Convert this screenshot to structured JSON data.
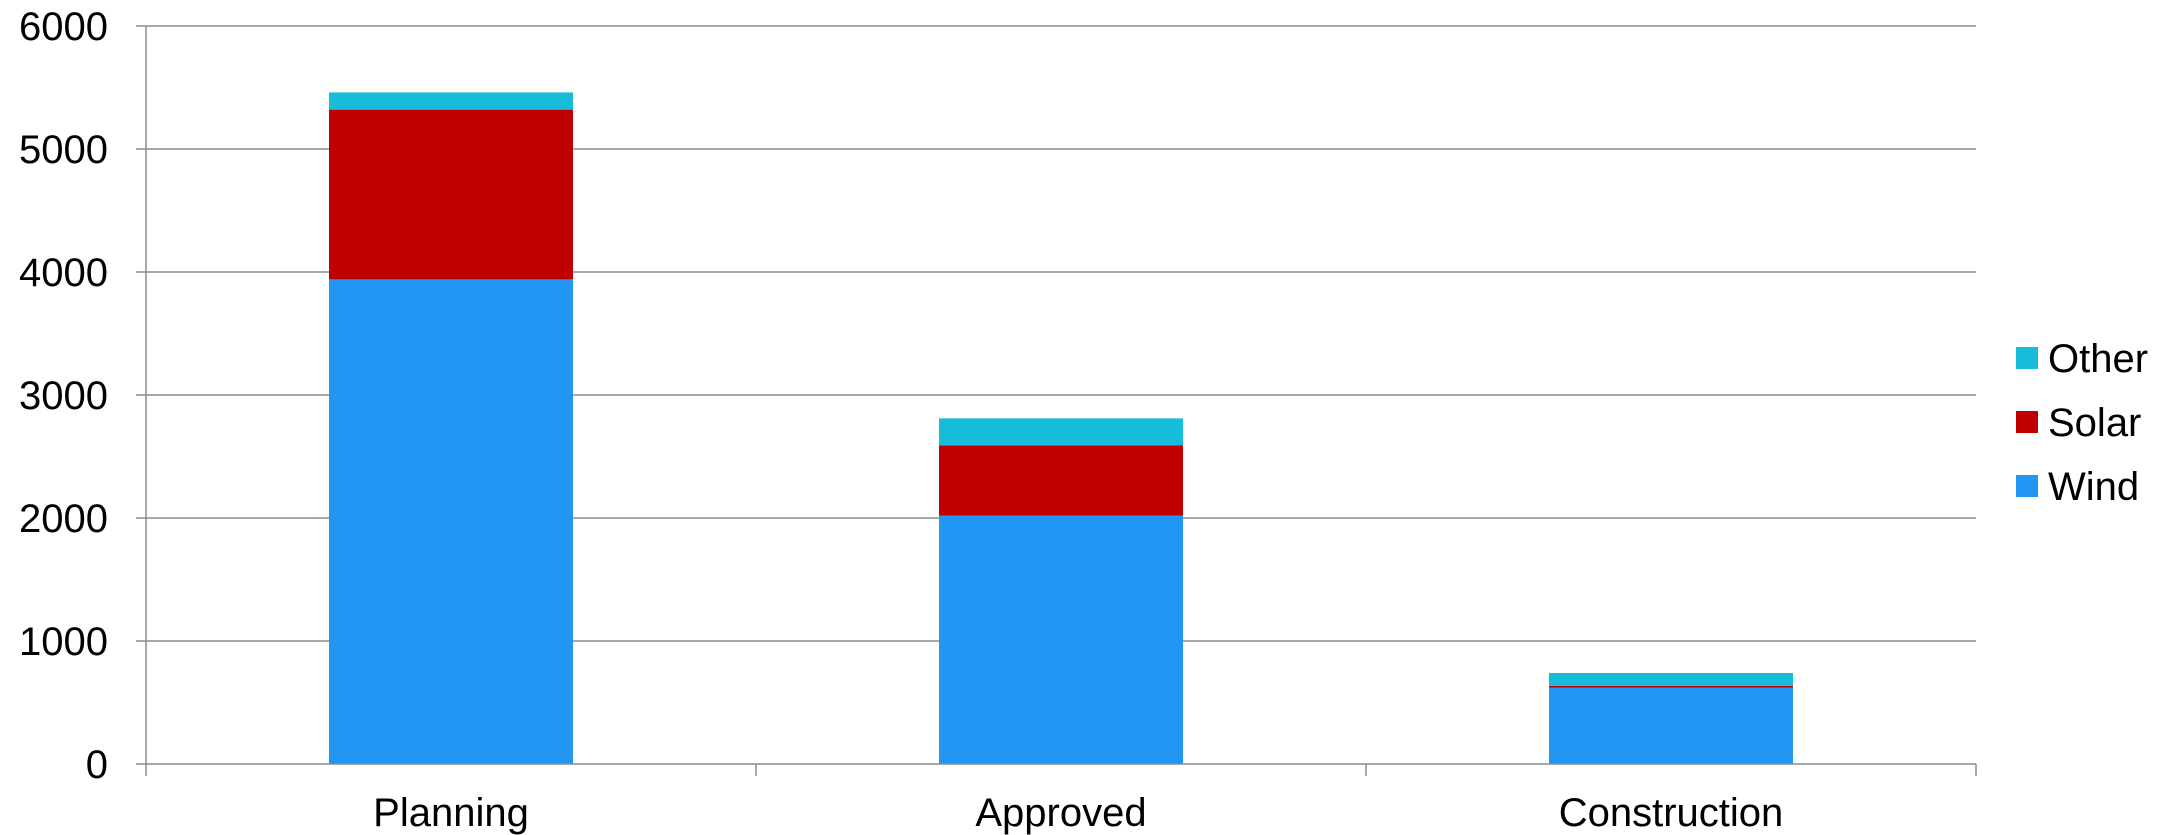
{
  "chart_data": {
    "type": "bar",
    "stacked": true,
    "categories": [
      "Planning",
      "Approved",
      "Construction"
    ],
    "series": [
      {
        "name": "Wind",
        "color": "#2196F3",
        "values": [
          3940,
          2020,
          620
        ]
      },
      {
        "name": "Solar",
        "color": "#C00000",
        "values": [
          1380,
          570,
          15
        ]
      },
      {
        "name": "Other",
        "color": "#17BCD8",
        "values": [
          140,
          220,
          105
        ]
      }
    ],
    "ylim": [
      0,
      6000
    ],
    "yticks": [
      0,
      1000,
      2000,
      3000,
      4000,
      5000,
      6000
    ],
    "grid": true,
    "legend_position": "right",
    "legend_order": [
      "Other",
      "Solar",
      "Wind"
    ],
    "title": "",
    "xlabel": "",
    "ylabel": ""
  }
}
